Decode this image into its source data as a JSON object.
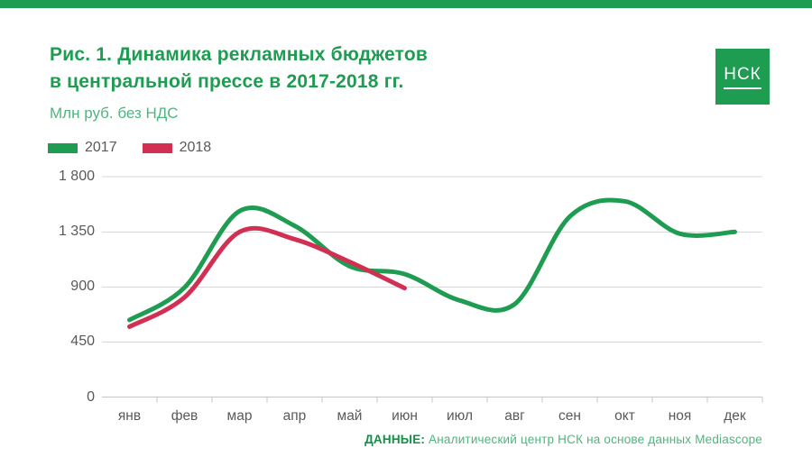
{
  "header": {
    "title_line1": "Рис. 1. Динамика рекламных бюджетов",
    "title_line2": "в центральной прессе в 2017-2018 гг.",
    "subtitle": "Млн руб. без НДС",
    "logo_text": "НСК"
  },
  "legend": {
    "items": [
      {
        "label": "2017",
        "color": "#1e9c51"
      },
      {
        "label": "2018",
        "color": "#d23053"
      }
    ]
  },
  "footer": {
    "label": "ДАННЫЕ:",
    "text": " Аналитический центр НСК на основе данных Mediascope"
  },
  "colors": {
    "brand_green": "#1e9c51",
    "light_green": "#4fb57e",
    "footer_label_green": "#119047",
    "accent_red": "#d23053",
    "text_gray": "#58595b",
    "gridline": "#d7d7d7",
    "axis_line": "#c6c6c6"
  },
  "chart_data": {
    "type": "line",
    "title": "Рис. 1. Динамика рекламных бюджетов в центральной прессе в 2017-2018 гг.",
    "ylabel": "Млн руб. без НДС",
    "categories": [
      "янв",
      "фев",
      "мар",
      "апр",
      "май",
      "июн",
      "июл",
      "авг",
      "сен",
      "окт",
      "ноя",
      "дек"
    ],
    "series": [
      {
        "name": "2017",
        "color": "#1e9c51",
        "values": [
          630,
          895,
          1520,
          1400,
          1070,
          1005,
          790,
          760,
          1475,
          1600,
          1335,
          1350
        ]
      },
      {
        "name": "2018",
        "color": "#d23053",
        "values": [
          575,
          815,
          1350,
          1290,
          1105,
          890
        ]
      }
    ],
    "ylim": [
      0,
      1800
    ],
    "yticks": [
      0,
      450,
      900,
      1350,
      1800
    ],
    "ytick_labels": [
      "0",
      "450",
      "900",
      "1 350",
      "1 800"
    ],
    "grid": true,
    "legend_position": "top-left",
    "smooth": true
  }
}
